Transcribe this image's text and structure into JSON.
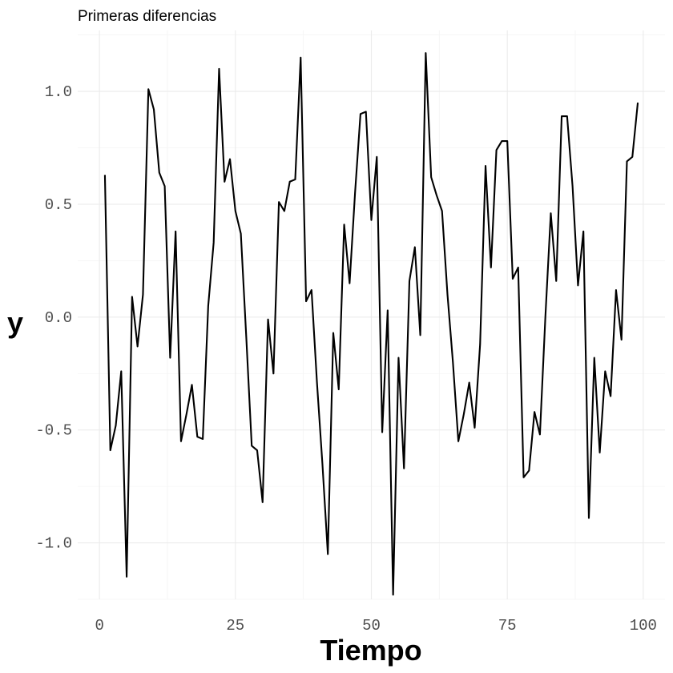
{
  "chart_data": {
    "type": "line",
    "title": "Primeras diferencias",
    "xlabel": "Tiempo",
    "ylabel": "y",
    "xlim": [
      -4,
      104
    ],
    "ylim": [
      -1.25,
      1.27
    ],
    "xticks": [
      0,
      25,
      50,
      75,
      100
    ],
    "xtick_labels": [
      "0",
      "25",
      "50",
      "75",
      "100"
    ],
    "yticks": [
      -1.0,
      -0.5,
      0.0,
      0.5,
      1.0
    ],
    "ytick_labels": [
      "-1.0",
      "-0.5",
      "0.0",
      "0.5",
      "1.0"
    ],
    "grid": true,
    "legend": "none",
    "line_color": "#000000",
    "series": [
      {
        "x": [
          1,
          2,
          3,
          4,
          5,
          6,
          7,
          8,
          9,
          10,
          11,
          12,
          13,
          14,
          15,
          16,
          17,
          18,
          19,
          20,
          21,
          22,
          23,
          24,
          25,
          26,
          27,
          28,
          29,
          30,
          31,
          32,
          33,
          34,
          35,
          36,
          37,
          38,
          39,
          40,
          41,
          42,
          43,
          44,
          45,
          46,
          47,
          48,
          49,
          50,
          51,
          52,
          53,
          54,
          55,
          56,
          57,
          58,
          59,
          60,
          61,
          62,
          63,
          64,
          65,
          66,
          67,
          68,
          69,
          70,
          71,
          72,
          73,
          74,
          75,
          76,
          77,
          78,
          79,
          80,
          81,
          82,
          83,
          84,
          85,
          86,
          87,
          88,
          89,
          90,
          91,
          92,
          93,
          94,
          95,
          96,
          97,
          98,
          99
        ],
        "values": [
          0.63,
          -0.59,
          -0.48,
          -0.24,
          -1.15,
          0.09,
          -0.13,
          0.1,
          1.01,
          0.92,
          0.64,
          0.58,
          -0.18,
          0.38,
          -0.55,
          -0.43,
          -0.3,
          -0.53,
          -0.54,
          0.05,
          0.33,
          1.1,
          0.6,
          0.7,
          0.47,
          0.37,
          -0.09,
          -0.57,
          -0.59,
          -0.82,
          -0.01,
          -0.25,
          0.51,
          0.47,
          0.6,
          0.61,
          1.15,
          0.07,
          0.12,
          -0.29,
          -0.65,
          -1.05,
          -0.07,
          -0.32,
          0.41,
          0.15,
          0.55,
          0.9,
          0.91,
          0.43,
          0.71,
          -0.51,
          0.03,
          -1.23,
          -0.18,
          -0.67,
          0.16,
          0.31,
          -0.08,
          1.17,
          0.62,
          0.54,
          0.47,
          0.1,
          -0.2,
          -0.55,
          -0.43,
          -0.29,
          -0.49,
          -0.12,
          0.67,
          0.22,
          0.74,
          0.78,
          0.78,
          0.17,
          0.22,
          -0.71,
          -0.68,
          -0.42,
          -0.52,
          0.0,
          0.46,
          0.16,
          0.89,
          0.89,
          0.58,
          0.14,
          0.38,
          -0.89,
          -0.18,
          -0.6,
          -0.24,
          -0.35,
          0.12,
          -0.1,
          0.69,
          0.71,
          0.95
        ]
      }
    ]
  }
}
